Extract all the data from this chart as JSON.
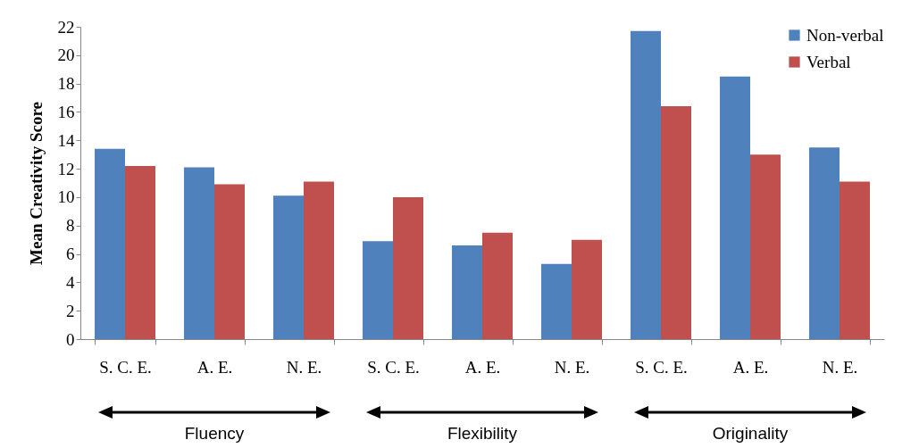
{
  "chart_data": {
    "type": "bar",
    "ylabel": "Mean Creativity Score",
    "categories": [
      "S. C. E.",
      "A. E.",
      "N. E.",
      "S. C. E.",
      "A. E.",
      "N. E.",
      "S. C. E.",
      "A. E.",
      "N. E."
    ],
    "series": [
      {
        "name": "Non-verbal",
        "color": "#4f81bd",
        "values": [
          13.4,
          12.1,
          10.1,
          6.9,
          6.6,
          5.3,
          21.7,
          18.5,
          13.5
        ]
      },
      {
        "name": "Verbal",
        "color": "#c0504d",
        "values": [
          12.2,
          10.9,
          11.1,
          10.0,
          7.5,
          7.0,
          16.4,
          13.0,
          11.1
        ]
      }
    ],
    "ylim": [
      0,
      22
    ],
    "yticks": [
      0,
      2,
      4,
      6,
      8,
      10,
      12,
      14,
      16,
      18,
      20,
      22
    ],
    "grid": false,
    "legend": "top right",
    "annotations": [
      "Fluency",
      "Flexibility",
      "Originality"
    ]
  }
}
